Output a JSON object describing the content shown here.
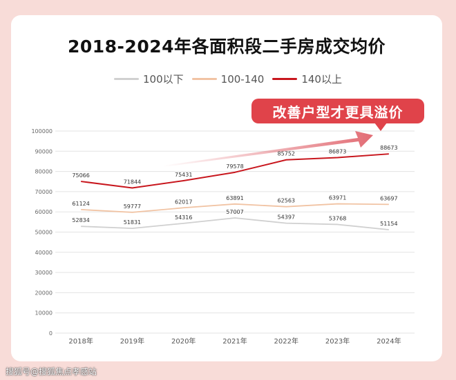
{
  "chart_data": {
    "type": "line",
    "title": "2018-2024年各面积段二手房成交均价",
    "categories": [
      "2018年",
      "2019年",
      "2020年",
      "2021年",
      "2022年",
      "2023年",
      "2024年"
    ],
    "series": [
      {
        "name": "100以下",
        "color": "#d0d0d0",
        "values": [
          52834,
          51831,
          54316,
          57007,
          54397,
          53768,
          51154
        ]
      },
      {
        "name": "100-140",
        "color": "#f1c3a3",
        "values": [
          61124,
          59777,
          62017,
          63891,
          62563,
          63971,
          63697
        ]
      },
      {
        "name": "140以上",
        "color": "#c8161d",
        "values": [
          75066,
          71844,
          75431,
          79578,
          85752,
          86873,
          88673
        ]
      }
    ],
    "ylim": [
      0,
      100000
    ],
    "yticks": [
      0,
      10000,
      20000,
      30000,
      40000,
      50000,
      60000,
      70000,
      80000,
      90000,
      100000
    ],
    "grid": true,
    "legend_position": "top-center",
    "annotation": "改善户型才更具溢价"
  },
  "callout_color": "#e0434a",
  "arrow_color": "#e26c74",
  "watermark": "搜狐号@搜狐焦点孝感站"
}
